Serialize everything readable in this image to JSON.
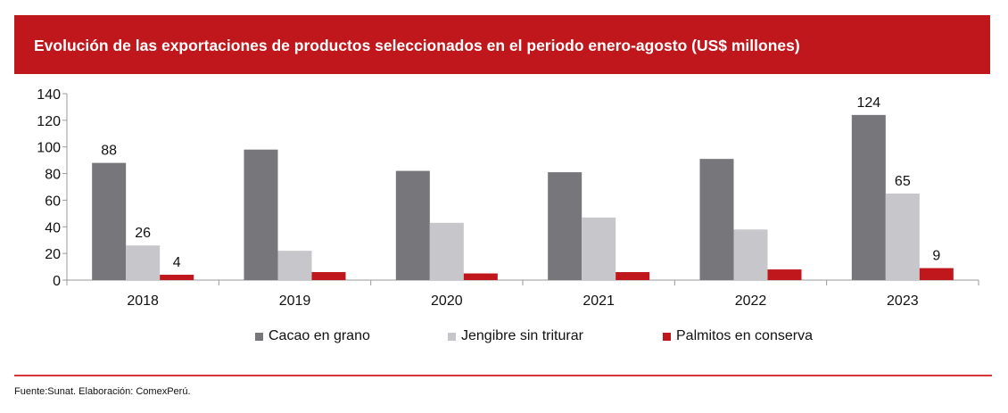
{
  "colors": {
    "header_bg": "#c0171c",
    "divider": "#d9343a",
    "series": [
      "#77767b",
      "#c7c7cb",
      "#c0171c"
    ]
  },
  "chart_data": {
    "type": "bar",
    "title": "Evolución de las exportaciones de productos seleccionados en el periodo enero-agosto (US$ millones)",
    "categories": [
      "2018",
      "2019",
      "2020",
      "2021",
      "2022",
      "2023"
    ],
    "series": [
      {
        "name": "Cacao en grano",
        "values": [
          88,
          98,
          82,
          81,
          91,
          124
        ]
      },
      {
        "name": "Jengibre sin triturar",
        "values": [
          26,
          22,
          43,
          47,
          38,
          65
        ]
      },
      {
        "name": "Palmitos en conserva",
        "values": [
          4,
          6,
          5,
          6,
          8,
          9
        ]
      }
    ],
    "data_labels": [
      {
        "category": "2018",
        "series": 0,
        "text": "88"
      },
      {
        "category": "2018",
        "series": 1,
        "text": "26"
      },
      {
        "category": "2018",
        "series": 2,
        "text": "4"
      },
      {
        "category": "2023",
        "series": 0,
        "text": "124"
      },
      {
        "category": "2023",
        "series": 1,
        "text": "65"
      },
      {
        "category": "2023",
        "series": 2,
        "text": "9"
      }
    ],
    "yticks": [
      "0",
      "20",
      "40",
      "60",
      "80",
      "100",
      "120",
      "140"
    ],
    "ylim": [
      0,
      140
    ],
    "xlabel": "",
    "ylabel": "",
    "grid": false,
    "legend_position": "bottom"
  },
  "source": "Fuente:Sunat. Elaboración: ComexPerú."
}
